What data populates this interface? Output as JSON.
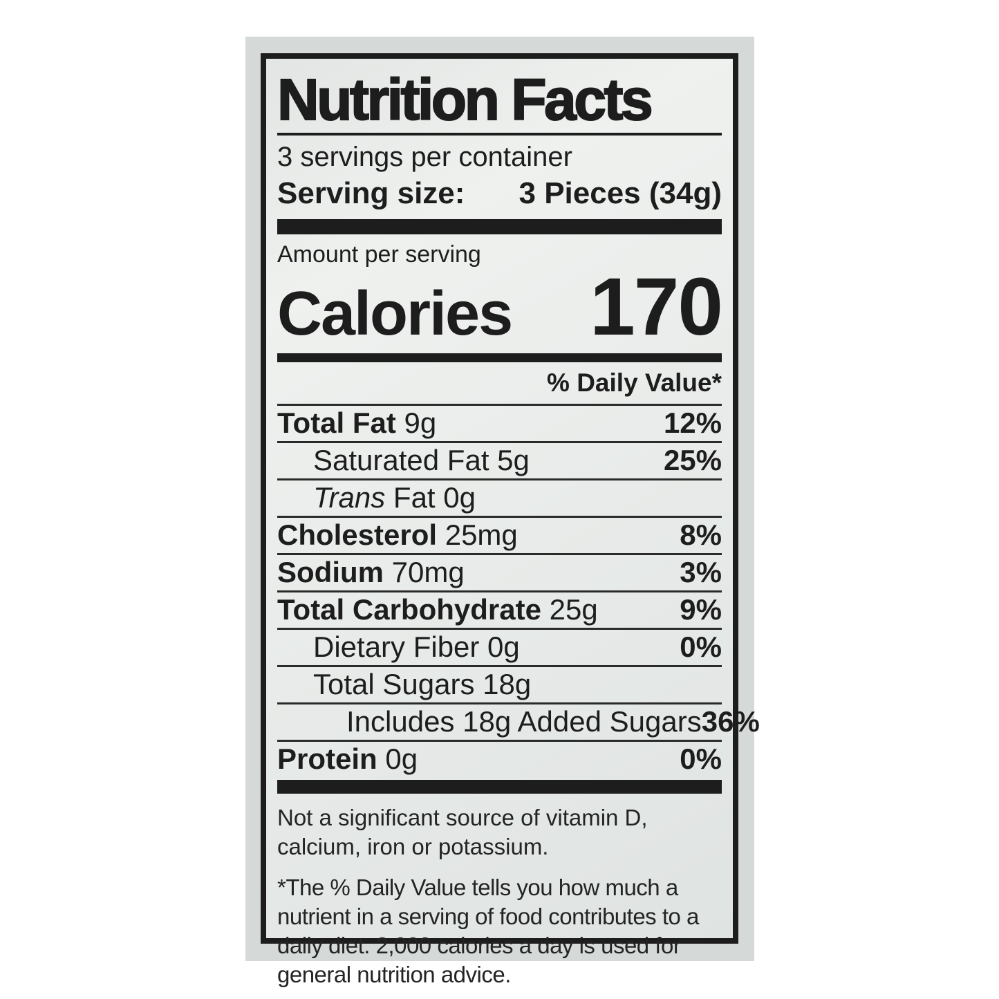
{
  "label": {
    "title": "Nutrition Facts",
    "servings_per_container": "3 servings per container",
    "serving_size_label": "Serving size:",
    "serving_size_value": "3 Pieces (34g)",
    "amount_per_serving": "Amount per serving",
    "calories_label": "Calories",
    "calories_value": "170",
    "daily_value_header": "% Daily Value*",
    "rows": [
      {
        "bold": "Total Fat",
        "regular": " 9g",
        "dv": "12%",
        "indent": 0
      },
      {
        "regular": "Saturated Fat 5g",
        "dv": "25%",
        "indent": 1
      },
      {
        "italic": "Trans",
        "regular": " Fat 0g",
        "dv": "",
        "indent": 1
      },
      {
        "bold": "Cholesterol",
        "regular": " 25mg",
        "dv": "8%",
        "indent": 0
      },
      {
        "bold": "Sodium",
        "regular": " 70mg",
        "dv": "3%",
        "indent": 0
      },
      {
        "bold": "Total Carbohydrate",
        "regular": " 25g",
        "dv": "9%",
        "indent": 0
      },
      {
        "regular": "Dietary Fiber 0g",
        "dv": "0%",
        "indent": 1
      },
      {
        "regular": "Total Sugars 18g",
        "dv": "",
        "indent": 1
      },
      {
        "regular": "Includes 18g Added Sugars",
        "dv": "36%",
        "indent": 2
      },
      {
        "bold": "Protein",
        "regular": " 0g",
        "dv": "0%",
        "indent": 0
      }
    ],
    "footnote_1": "Not a significant source of vitamin D, calcium, iron or potassium.",
    "footnote_2": "*The % Daily Value tells you how much a nutrient in a serving of food contributes to a daily diet. 2,000 calories a day is used for general nutrition advice."
  },
  "colors": {
    "page_bg": "#ffffff",
    "panel_bg": "#d5d9d7",
    "label_bg": "#e8ebe9",
    "ink": "#1d1d1d"
  }
}
